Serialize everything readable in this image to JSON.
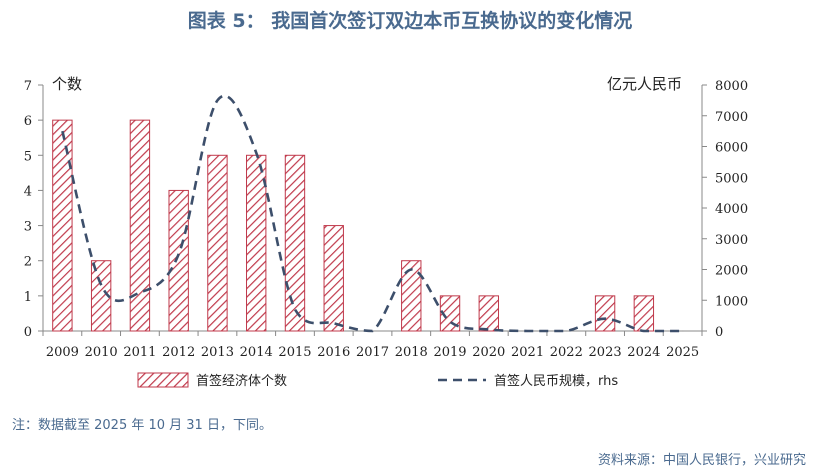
{
  "title": "图表 5：  我国首次签订双边本币互换协议的变化情况",
  "note": "注：数据截至 2025 年 10 月 31 日，下同。",
  "source": "资料来源：中国人民银行，兴业研究",
  "chart_data": {
    "type": "bar",
    "categories": [
      "2009",
      "2010",
      "2011",
      "2012",
      "2013",
      "2014",
      "2015",
      "2016",
      "2017",
      "2018",
      "2019",
      "2020",
      "2021",
      "2022",
      "2023",
      "2024",
      "2025"
    ],
    "left_axis": {
      "unit_label": "个数",
      "ylim": [
        0,
        7
      ],
      "ticks": [
        "0",
        "1",
        "2",
        "3",
        "4",
        "5",
        "6",
        "7"
      ]
    },
    "right_axis": {
      "unit_label": "亿元人民币",
      "ylim": [
        0,
        8000
      ],
      "ticks": [
        "0",
        "1000",
        "2000",
        "3000",
        "4000",
        "5000",
        "6000",
        "7000",
        "8000"
      ]
    },
    "series": [
      {
        "name": "首签经济体个数",
        "type": "bar",
        "axis": "left",
        "values": [
          6,
          2,
          6,
          4,
          5,
          5,
          5,
          3,
          0,
          2,
          1,
          1,
          0,
          0,
          1,
          1,
          0
        ]
      },
      {
        "name": "首签人民币规模，rhs",
        "type": "line",
        "axis": "right",
        "values": [
          6500,
          1500,
          1250,
          2500,
          7500,
          5800,
          700,
          250,
          0,
          2000,
          300,
          50,
          0,
          0,
          400,
          0,
          0
        ]
      }
    ],
    "colors": {
      "bar_stroke": "#c0394b",
      "bar_hatch": "#c0394b",
      "line": "#3d4f6b"
    },
    "grid": false,
    "legend_position": "bottom"
  }
}
